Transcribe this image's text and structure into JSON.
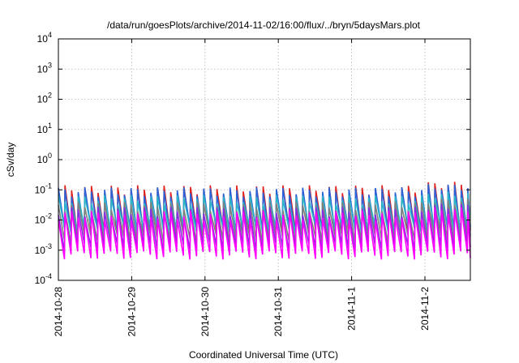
{
  "chart_data": {
    "type": "line",
    "title": "/data/run/goesPlots/archive/2014-11-02/16:00/flux/../bryn/5daysMars.plot",
    "xlabel": "Coordinated Universal Time (UTC)",
    "ylabel": "cSv/day",
    "x_range": [
      "2014-10-28T00:00",
      "2014-11-02T16:00"
    ],
    "y_scale": "log",
    "ylim": [
      0.0001,
      10000
    ],
    "grid": true,
    "x_ticks": [
      "2014-10-28",
      "2014-10-29",
      "2014-10-30",
      "2014-10-31",
      "2014-11-1",
      "2014-11-2"
    ],
    "y_ticks": [
      {
        "value": 0.0001,
        "base": "10",
        "exp": "-4"
      },
      {
        "value": 0.001,
        "base": "10",
        "exp": "-3"
      },
      {
        "value": 0.01,
        "base": "10",
        "exp": "-2"
      },
      {
        "value": 0.1,
        "base": "10",
        "exp": "-1"
      },
      {
        "value": 1,
        "base": "10",
        "exp": "0"
      },
      {
        "value": 10,
        "base": "10",
        "exp": "1"
      },
      {
        "value": 100,
        "base": "10",
        "exp": "2"
      },
      {
        "value": 1000,
        "base": "10",
        "exp": "3"
      },
      {
        "value": 10000,
        "base": "10",
        "exp": "4"
      }
    ],
    "cycles_per_day": 11.1,
    "series": [
      {
        "color": "#e0201c",
        "peak": 0.105,
        "trough": 0.004
      },
      {
        "color": "#2a63d8",
        "peak": 0.09,
        "trough": 0.0045
      },
      {
        "color": "#2ab4c8",
        "peak": 0.05,
        "trough": 0.005
      },
      {
        "color": "#808080",
        "peak": 0.03,
        "trough": 0.0025
      },
      {
        "color": "#8a2be2",
        "peak": 0.02,
        "trough": 0.0013
      },
      {
        "color": "#ff00ff",
        "peak": 0.015,
        "trough": 0.0007
      }
    ]
  }
}
